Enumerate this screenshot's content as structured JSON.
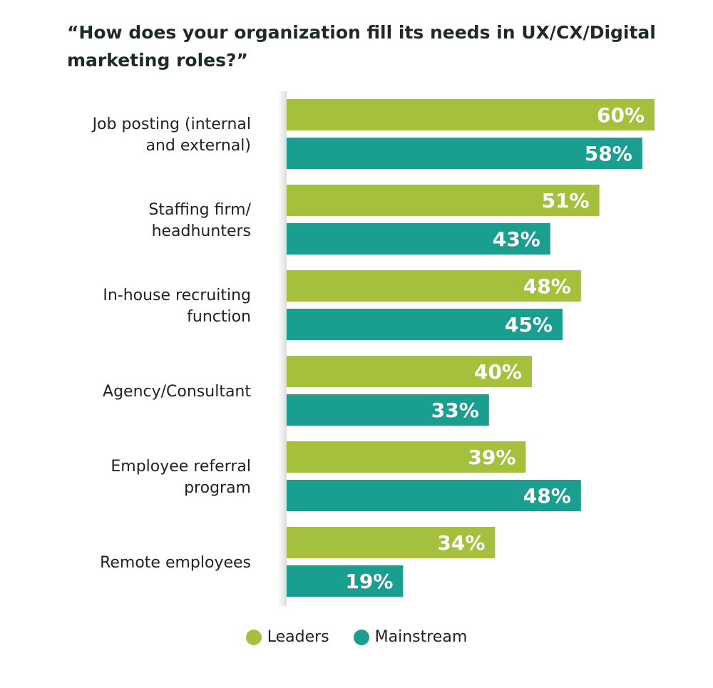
{
  "chart_data": {
    "type": "bar",
    "orientation": "horizontal",
    "title": "“How does your organization fill its needs in UX/CX/Digital marketing roles?”",
    "categories": [
      [
        "Job posting (internal",
        "and external)"
      ],
      [
        "Staffing firm/",
        "headhunters"
      ],
      [
        "In-house recruiting",
        "function"
      ],
      [
        "Agency/Consultant"
      ],
      [
        "Employee referral",
        "program"
      ],
      [
        "Remote employees"
      ]
    ],
    "series": [
      {
        "name": "Leaders",
        "color": "#a4c03c",
        "values": [
          60,
          51,
          48,
          40,
          39,
          34
        ]
      },
      {
        "name": "Mainstream",
        "color": "#1a9e8f",
        "values": [
          58,
          43,
          45,
          33,
          48,
          19
        ]
      }
    ],
    "value_suffix": "%",
    "xlim": [
      0,
      60
    ],
    "grid": false,
    "legend_position": "bottom-center"
  }
}
